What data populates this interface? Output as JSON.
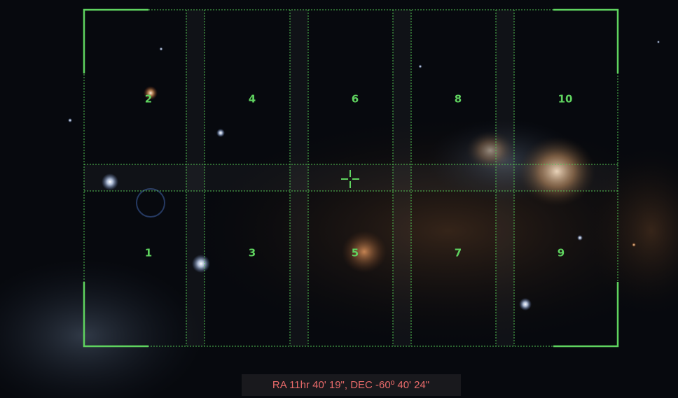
{
  "tiles": [
    "1",
    "2",
    "3",
    "4",
    "5",
    "6",
    "7",
    "8",
    "9",
    "10"
  ],
  "coordinates": "RA 11hr 40' 19\", DEC -60º 40' 24\""
}
